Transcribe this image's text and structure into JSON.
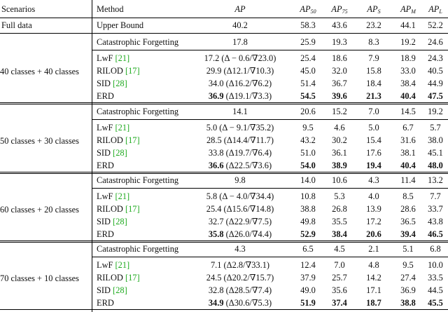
{
  "header": {
    "scenarios": "Scenarios",
    "method": "Method",
    "cols": [
      {
        "main": "AP",
        "sub": ""
      },
      {
        "main": "AP",
        "sub": "50"
      },
      {
        "main": "AP",
        "sub": "75"
      },
      {
        "main": "AP",
        "sub": "S"
      },
      {
        "main": "AP",
        "sub": "M"
      },
      {
        "main": "AP",
        "sub": "L"
      }
    ]
  },
  "full": {
    "scenario": "Full data",
    "method": "Upper Bound",
    "ap": "40.2",
    "vals": [
      "58.3",
      "43.6",
      "23.2",
      "44.1",
      "52.2"
    ]
  },
  "groups": [
    {
      "scenario": "40 classes + 40 classes",
      "cf": {
        "method": "Catastrophic Forgetting",
        "ap": "17.8",
        "vals": [
          "25.9",
          "19.3",
          "8.3",
          "19.2",
          "24.6"
        ]
      },
      "rows": [
        {
          "method": "LwF",
          "ref": "[21]",
          "ap": "17.2 (Δ − 0.6/∇23.0)",
          "vals": [
            "25.4",
            "18.6",
            "7.9",
            "18.9",
            "24.3"
          ]
        },
        {
          "method": "RILOD",
          "ref": "[17]",
          "ap": "29.9 (Δ12.1/∇10.3)",
          "vals": [
            "45.0",
            "32.0",
            "15.8",
            "33.0",
            "40.5"
          ]
        },
        {
          "method": "SID",
          "ref": "[28]",
          "ap": "34.0 (Δ16.2/∇6.2)",
          "vals": [
            "51.4",
            "36.7",
            "18.4",
            "38.4",
            "44.9"
          ]
        },
        {
          "method": "ERD",
          "ref": "",
          "ap_bold": "36.9",
          "ap_rest": " (Δ19.1/∇3.3)",
          "vals": [
            "54.5",
            "39.6",
            "21.3",
            "40.4",
            "47.5"
          ]
        }
      ]
    },
    {
      "scenario": "50 classes + 30 classes",
      "cf": {
        "method": "Catastrophic Forgetting",
        "ap": "14.1",
        "vals": [
          "20.6",
          "15.2",
          "7.0",
          "14.5",
          "19.2"
        ]
      },
      "rows": [
        {
          "method": "LwF",
          "ref": "[21]",
          "ap": "5.0 (Δ − 9.1/∇35.2)",
          "vals": [
            "9.5",
            "4.6",
            "5.0",
            "6.7",
            "5.7"
          ]
        },
        {
          "method": "RILOD",
          "ref": "[17]",
          "ap": "28.5 (Δ14.4/∇11.7)",
          "vals": [
            "43.2",
            "30.2",
            "15.4",
            "31.6",
            "38.0"
          ]
        },
        {
          "method": "SID",
          "ref": "[28]",
          "ap": "33.8 (Δ19.7/∇6.4)",
          "vals": [
            "51.0",
            "36.1",
            "17.6",
            "38.1",
            "45.1"
          ]
        },
        {
          "method": "ERD",
          "ref": "",
          "ap_bold": "36.6",
          "ap_rest": " (Δ22.5/∇3.6)",
          "vals": [
            "54.0",
            "38.9",
            "19.4",
            "40.4",
            "48.0"
          ]
        }
      ]
    },
    {
      "scenario": "60 classes + 20 classes",
      "cf": {
        "method": "Catastrophic Forgetting",
        "ap": "9.8",
        "vals": [
          "14.0",
          "10.6",
          "4.3",
          "11.4",
          "13.2"
        ]
      },
      "rows": [
        {
          "method": "LwF",
          "ref": "[21]",
          "ap": "5.8 (Δ − 4.0/∇34.4)",
          "vals": [
            "10.8",
            "5.3",
            "4.0",
            "8.5",
            "7.7"
          ]
        },
        {
          "method": "RILOD",
          "ref": "[17]",
          "ap": "25.4 (Δ15.6/∇14.8)",
          "vals": [
            "38.8",
            "26.8",
            "13.9",
            "28.6",
            "33.7"
          ]
        },
        {
          "method": "SID",
          "ref": "[28]",
          "ap": "32.7 (Δ22.9/∇7.5)",
          "vals": [
            "49.8",
            "35.5",
            "17.2",
            "36.5",
            "43.8"
          ]
        },
        {
          "method": "ERD",
          "ref": "",
          "ap_bold": "35.8",
          "ap_rest": " (Δ26.0/∇4.4)",
          "vals": [
            "52.9",
            "38.4",
            "20.6",
            "39.4",
            "46.5"
          ]
        }
      ]
    },
    {
      "scenario": "70 classes + 10 classes",
      "cf": {
        "method": "Catastrophic Forgetting",
        "ap": "4.3",
        "vals": [
          "6.5",
          "4.5",
          "2.1",
          "5.1",
          "6.8"
        ]
      },
      "rows": [
        {
          "method": "LwF",
          "ref": "[21]",
          "ap": "7.1 (Δ2.8/∇33.1)",
          "vals": [
            "12.4",
            "7.0",
            "4.8",
            "9.5",
            "10.0"
          ]
        },
        {
          "method": "RILOD",
          "ref": "[17]",
          "ap": "24.5 (Δ20.2/∇15.7)",
          "vals": [
            "37.9",
            "25.7",
            "14.2",
            "27.4",
            "33.5"
          ]
        },
        {
          "method": "SID",
          "ref": "[28]",
          "ap": "32.8 (Δ28.5/∇7.4)",
          "vals": [
            "49.0",
            "35.6",
            "17.1",
            "36.9",
            "44.5"
          ]
        },
        {
          "method": "ERD",
          "ref": "",
          "ap_bold": "34.9",
          "ap_rest": " (Δ30.6/∇5.3)",
          "vals": [
            "51.9",
            "37.4",
            "18.7",
            "38.8",
            "45.5"
          ]
        }
      ]
    }
  ]
}
